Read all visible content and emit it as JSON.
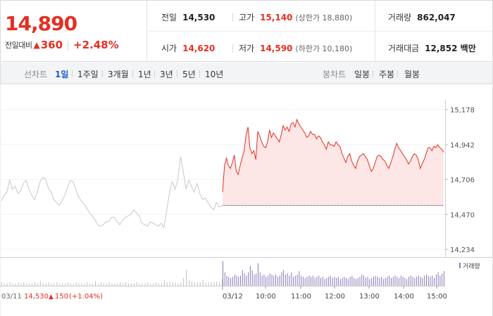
{
  "price": {
    "current": "14,890",
    "change_label": "전일대비",
    "arrow": "▲",
    "change": "360",
    "change_pct": "+2.48%"
  },
  "stats": {
    "prev_close_label": "전일",
    "prev_close": "14,530",
    "open_label": "시가",
    "open": "14,620",
    "high_label": "고가",
    "high": "15,140",
    "upper_limit": "(상한가 18,880)",
    "low_label": "저가",
    "low": "14,590",
    "lower_limit": "(하한가 10,180)",
    "volume_label": "거래량",
    "volume": "862,047",
    "amount_label": "거래대금",
    "amount": "12,852 백만"
  },
  "toolbar": {
    "line_label": "선차트",
    "periods": [
      "1일",
      "1주일",
      "3개월",
      "1년",
      "3년",
      "5년",
      "10년"
    ],
    "active_period": "1일",
    "candle_label": "봉차트",
    "candles": [
      "일봉",
      "주봉",
      "월봉"
    ]
  },
  "colors": {
    "up": "#e52f22",
    "active_tab": "#1b5fcf",
    "prev_day_line": "#c8c8c8",
    "area_fill": "#fde6e6",
    "volume_today": "#8f79b8"
  },
  "chart_data": {
    "type": "line",
    "y_ticks": [
      "15,178",
      "14,942",
      "14,706",
      "14,470",
      "14,234"
    ],
    "ylim": [
      14234,
      15178
    ],
    "volume_legend": "거래량",
    "prev_day": {
      "date": "03/11",
      "close": "14,530",
      "arrow": "▲",
      "change": "150",
      "change_pct": "(+1.04%)"
    },
    "today_date": "03/12",
    "time_labels": [
      "10:00",
      "11:00",
      "12:00",
      "13:00",
      "14:00",
      "15:00"
    ],
    "base_price": 14530,
    "prev_day_series": [
      14560,
      14600,
      14620,
      14700,
      14640,
      14660,
      14610,
      14630,
      14680,
      14700,
      14640,
      14600,
      14570,
      14620,
      14690,
      14720,
      14710,
      14650,
      14620,
      14570,
      14550,
      14530,
      14560,
      14600,
      14650,
      14700,
      14690,
      14640,
      14590,
      14560,
      14540,
      14510,
      14480,
      14460,
      14430,
      14400,
      14390,
      14400,
      14420,
      14420,
      14450,
      14450,
      14420,
      14400,
      14430,
      14450,
      14460,
      14470,
      14500,
      14480,
      14460,
      14410,
      14400,
      14390,
      14420,
      14410,
      14400,
      14390,
      14410,
      14380,
      14500,
      14620,
      14690,
      14640,
      14700,
      14860,
      14760,
      14640,
      14700,
      14660,
      14620,
      14680,
      14610,
      14570,
      14580,
      14550,
      14520,
      14500,
      14550,
      14520,
      14530
    ],
    "today_series": [
      14620,
      14800,
      14850,
      14800,
      14780,
      14820,
      14870,
      14760,
      14740,
      14800,
      14850,
      14900,
      15000,
      15060,
      14920,
      14880,
      14900,
      14840,
      15030,
      15000,
      14960,
      14930,
      14920,
      14960,
      15040,
      14990,
      15020,
      15000,
      14980,
      14960,
      15010,
      15070,
      15040,
      15060,
      15030,
      15080,
      15090,
      15060,
      15110,
      15080,
      15060,
      15040,
      15020,
      14990,
      15000,
      15030,
      15010,
      15010,
      14980,
      15000,
      14990,
      14960,
      14940,
      14910,
      14960,
      14940,
      14940,
      14930,
      14960,
      14940,
      14930,
      14880,
      14850,
      14820,
      14860,
      14880,
      14830,
      14800,
      14780,
      14830,
      14860,
      14870,
      14880,
      14860,
      14840,
      14800,
      14760,
      14780,
      14820,
      14860,
      14870,
      14860,
      14840,
      14830,
      14800,
      14780,
      14820,
      14860,
      14910,
      14950,
      14920,
      14900,
      14880,
      14860,
      14840,
      14810,
      14830,
      14860,
      14880,
      14870,
      14840,
      14780,
      14810,
      14840,
      14880,
      14920,
      14920,
      14900,
      14930,
      14920,
      14940,
      14920,
      14910,
      14890
    ],
    "prev_day_volume": [
      3,
      2,
      2,
      3,
      2,
      2,
      3,
      2,
      3,
      2,
      2,
      2,
      3,
      2,
      4,
      2,
      2,
      3,
      2,
      2,
      3,
      2,
      2,
      2,
      3,
      2,
      2,
      3,
      2,
      2,
      2,
      3,
      2,
      2,
      4,
      2,
      3,
      2,
      2,
      3,
      2,
      2,
      2,
      3,
      2,
      3,
      2,
      2,
      2,
      3,
      2,
      2,
      2,
      3,
      2,
      2,
      3,
      2,
      2,
      5,
      3,
      4,
      3,
      3,
      2,
      3,
      7,
      14,
      5,
      4,
      3,
      3,
      3,
      5,
      3,
      3,
      3,
      3,
      4,
      3,
      6
    ],
    "today_volume": [
      22,
      12,
      9,
      8,
      7,
      8,
      10,
      9,
      8,
      9,
      14,
      11,
      9,
      12,
      18,
      14,
      10,
      11,
      20,
      12,
      9,
      10,
      8,
      9,
      11,
      10,
      9,
      10,
      8,
      9,
      12,
      14,
      10,
      11,
      9,
      12,
      8,
      9,
      10,
      13,
      9,
      8,
      7,
      8,
      9,
      8,
      9,
      7,
      8,
      9,
      7,
      8,
      6,
      7,
      8,
      9,
      7,
      8,
      7,
      8,
      6,
      7,
      8,
      7,
      6,
      8,
      9,
      7,
      6,
      7,
      8,
      10,
      9,
      7,
      8,
      6,
      7,
      8,
      9,
      8,
      7,
      8,
      6,
      7,
      8,
      9,
      7,
      8,
      9,
      8,
      7,
      9,
      8,
      7,
      6,
      8,
      9,
      8,
      7,
      8,
      9,
      8,
      7,
      9,
      10,
      9,
      8,
      9,
      7,
      10,
      12,
      9,
      11,
      13
    ]
  }
}
